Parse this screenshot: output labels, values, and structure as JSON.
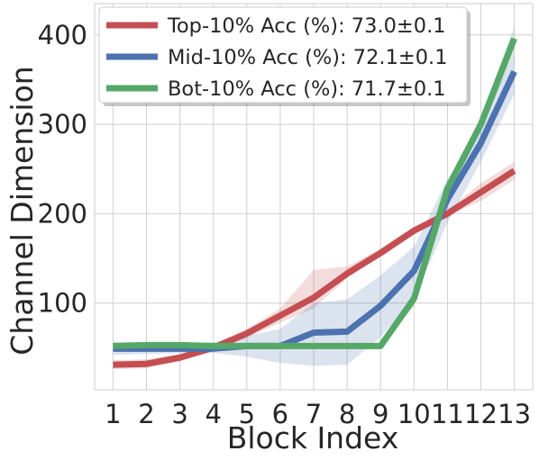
{
  "chart_data": {
    "type": "line",
    "xlabel": "Block Index",
    "ylabel": "Channel Dimension",
    "title": "",
    "x": [
      1,
      2,
      3,
      4,
      5,
      6,
      7,
      8,
      9,
      10,
      11,
      12,
      13
    ],
    "x_ticks": [
      "1",
      "2",
      "3",
      "4",
      "5",
      "6",
      "7",
      "8",
      "9",
      "10",
      "11",
      "12",
      "13"
    ],
    "y_ticks": [
      100,
      200,
      300,
      400
    ],
    "xlim": [
      0.45,
      13.55
    ],
    "ylim": [
      3,
      435
    ],
    "grid": true,
    "legend_position": "top-left",
    "series": [
      {
        "name": "Top-10% Acc (%): 73.0±0.1",
        "color": "#c44e52",
        "values": [
          31,
          32,
          39,
          50,
          66,
          86,
          106,
          133,
          156,
          181,
          200,
          224,
          248
        ],
        "lower": [
          26,
          27,
          35,
          47,
          61,
          78,
          94,
          128,
          152,
          177,
          198,
          214,
          238
        ],
        "upper": [
          36,
          37,
          43,
          54,
          71,
          94,
          137,
          141,
          161,
          185,
          204,
          234,
          258
        ]
      },
      {
        "name": "Mid-10% Acc (%): 72.1±0.1",
        "color": "#4c72b0",
        "values": [
          49,
          49,
          49,
          49,
          52,
          52,
          67,
          68,
          97,
          136,
          216,
          279,
          359
        ],
        "lower": [
          42,
          43,
          44,
          44,
          40,
          33,
          30,
          31,
          62,
          104,
          190,
          258,
          334
        ],
        "upper": [
          56,
          55,
          55,
          56,
          63,
          71,
          100,
          104,
          131,
          163,
          238,
          298,
          380
        ]
      },
      {
        "name": "Bot-10% Acc (%): 71.7±0.1",
        "color": "#55a868",
        "values": [
          52,
          53,
          53,
          52,
          52,
          52,
          52,
          52,
          52,
          105,
          228,
          300,
          396
        ],
        "lower": [
          52,
          53,
          53,
          52,
          52,
          52,
          52,
          52,
          52,
          96,
          220,
          292,
          380
        ],
        "upper": [
          52,
          53,
          53,
          52,
          52,
          52,
          52,
          52,
          52,
          113,
          236,
          308,
          410
        ]
      }
    ]
  }
}
